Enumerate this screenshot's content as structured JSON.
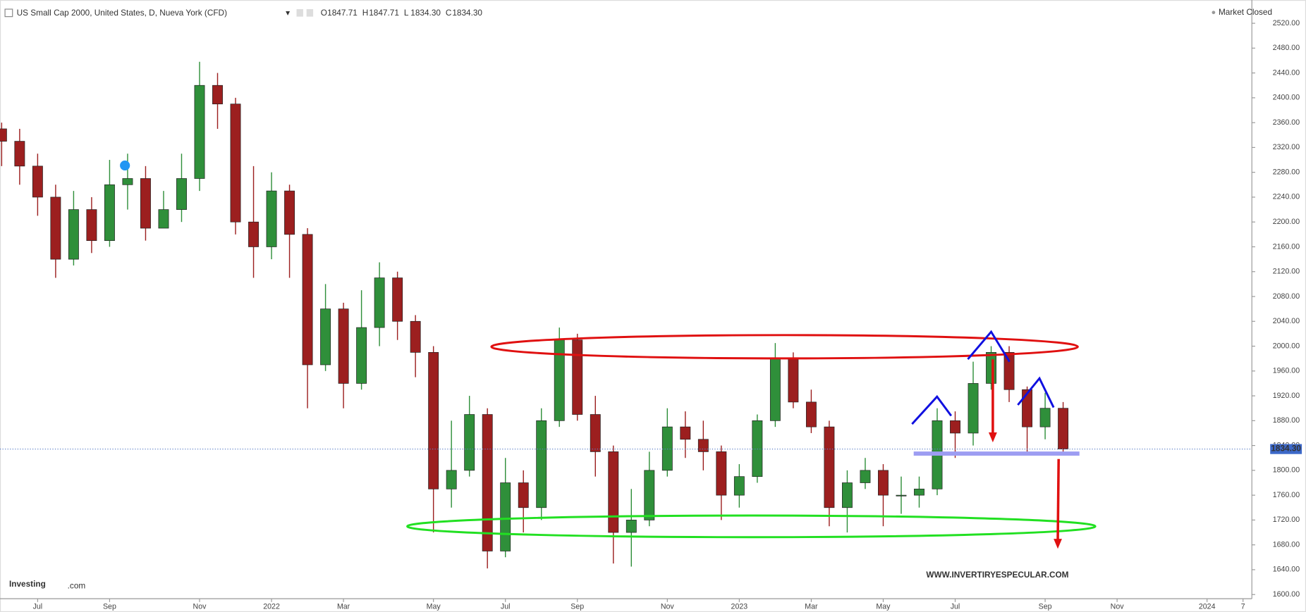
{
  "header": {
    "title": "US Small Cap 2000, United States, D, Nueva York (CFD)",
    "quote": [
      [
        "O",
        "1847.71"
      ],
      [
        "H",
        "1847.71"
      ],
      [
        "L",
        "1834.30"
      ],
      [
        "C",
        "1834.30"
      ]
    ],
    "status": "Market Closed"
  },
  "logo": {
    "brand": "Investing",
    "suffix": ".com"
  },
  "watermark": "WWW.INVERTIRYESPECULAR.COM",
  "chart_data": {
    "type": "candlestick",
    "categories": [
      null,
      null,
      "Jul",
      null,
      null,
      null,
      "Sep",
      null,
      null,
      null,
      null,
      "Nov",
      null,
      null,
      null,
      "2022",
      null,
      null,
      null,
      "Mar",
      null,
      null,
      null,
      null,
      "May",
      null,
      null,
      null,
      "Jul",
      null,
      null,
      null,
      "Sep",
      null,
      null,
      null,
      null,
      "Nov",
      null,
      null,
      null,
      "2023",
      null,
      null,
      null,
      "Mar",
      null,
      null,
      null,
      "May",
      null,
      null,
      null,
      "Jul",
      null,
      null,
      null,
      null,
      "Sep",
      null,
      null,
      null,
      "Nov",
      null,
      null,
      null,
      null,
      "2024",
      null,
      "7"
    ],
    "open": [
      2350,
      2330,
      2290,
      2240,
      2140,
      2220,
      2170,
      2260,
      2270,
      2190,
      2220,
      2270,
      2420,
      2390,
      2200,
      2160,
      2250,
      2180,
      1970,
      2060,
      1940,
      2030,
      2110,
      2040,
      1990,
      1770,
      1800,
      1890,
      1670,
      1780,
      1740,
      1880,
      2010,
      1890,
      1830,
      1700,
      1720,
      1800,
      1870,
      1850,
      1830,
      1760,
      1790,
      1880,
      1980,
      1910,
      1870,
      1740,
      1780,
      1800,
      1760,
      1760,
      1770,
      1880,
      1860,
      1940,
      1990,
      1930,
      1870,
      1900,
      null,
      null,
      null,
      null,
      null,
      null,
      null,
      null,
      null,
      null
    ],
    "high": [
      2360,
      2350,
      2310,
      2260,
      2250,
      2240,
      2300,
      2310,
      2290,
      2250,
      2310,
      2458,
      2440,
      2400,
      2290,
      2280,
      2260,
      2190,
      2100,
      2070,
      2090,
      2135,
      2120,
      2050,
      2000,
      1880,
      1920,
      1900,
      1820,
      1800,
      1900,
      2030,
      2020,
      1920,
      1840,
      1770,
      1830,
      1900,
      1895,
      1880,
      1840,
      1810,
      1890,
      2005,
      1990,
      1930,
      1880,
      1800,
      1820,
      1810,
      1790,
      1790,
      1900,
      1895,
      1975,
      2000,
      2000,
      1935,
      1925,
      1910,
      null,
      null,
      null,
      null,
      null,
      null,
      null,
      null,
      null,
      null
    ],
    "low": [
      2290,
      2260,
      2210,
      2110,
      2130,
      2150,
      2160,
      2220,
      2170,
      2190,
      2200,
      2250,
      2350,
      2180,
      2110,
      2140,
      2110,
      1900,
      1960,
      1900,
      1930,
      2000,
      2010,
      1950,
      1700,
      1740,
      1790,
      1642,
      1660,
      1700,
      1720,
      1870,
      1880,
      1790,
      1650,
      1645,
      1710,
      1790,
      1820,
      1800,
      1720,
      1740,
      1780,
      1870,
      1900,
      1860,
      1710,
      1700,
      1770,
      1710,
      1730,
      1740,
      1760,
      1820,
      1840,
      1930,
      1910,
      1830,
      1850,
      1830,
      null,
      null,
      null,
      null,
      null,
      null,
      null,
      null,
      null,
      null
    ],
    "close": [
      2330,
      2290,
      2240,
      2140,
      2220,
      2170,
      2260,
      2270,
      2190,
      2220,
      2270,
      2420,
      2390,
      2200,
      2160,
      2250,
      2180,
      1970,
      2060,
      1940,
      2030,
      2110,
      2040,
      1990,
      1770,
      1800,
      1890,
      1670,
      1780,
      1740,
      1880,
      2010,
      1890,
      1830,
      1700,
      1720,
      1800,
      1870,
      1850,
      1830,
      1760,
      1790,
      1880,
      1980,
      1910,
      1870,
      1740,
      1780,
      1800,
      1760,
      1760,
      1770,
      1880,
      1860,
      1940,
      1990,
      1930,
      1870,
      1900,
      1834.3,
      null,
      null,
      null,
      null,
      null,
      null,
      null,
      null,
      null,
      null
    ],
    "up_color": "#2f8f3a",
    "down_color": "#9c1f1f",
    "ylim": [
      1600,
      2520
    ],
    "yticks": [
      {
        "value": 1600,
        "label": "1600.00"
      },
      {
        "value": 1640,
        "label": "1640.00"
      },
      {
        "value": 1680,
        "label": "1680.00"
      },
      {
        "value": 1720,
        "label": "1720.00"
      },
      {
        "value": 1760,
        "label": "1760.00"
      },
      {
        "value": 1800,
        "label": "1800.00"
      },
      {
        "value": 1840,
        "label": "1840.00"
      },
      {
        "value": 1880,
        "label": "1880.00"
      },
      {
        "value": 1920,
        "label": "1920.00"
      },
      {
        "value": 1960,
        "label": "1960.00"
      },
      {
        "value": 2000,
        "label": "2000.00"
      },
      {
        "value": 2040,
        "label": "2040.00"
      },
      {
        "value": 2080,
        "label": "2080.00"
      },
      {
        "value": 2120,
        "label": "2120.00"
      },
      {
        "value": 2160,
        "label": "2160.00"
      },
      {
        "value": 2200,
        "label": "2200.00"
      },
      {
        "value": 2240,
        "label": "2240.00"
      },
      {
        "value": 2280,
        "label": "2280.00"
      },
      {
        "value": 2320,
        "label": "2320.00"
      },
      {
        "value": 2360,
        "label": "2360.00"
      },
      {
        "value": 2400,
        "label": "2400.00"
      },
      {
        "value": 2440,
        "label": "2440.00"
      },
      {
        "value": 2480,
        "label": "2480.00"
      },
      {
        "value": 2520,
        "label": "2520.00"
      }
    ],
    "last_price": {
      "value": 1834.3,
      "label": "1834.30"
    },
    "grid": false
  }
}
